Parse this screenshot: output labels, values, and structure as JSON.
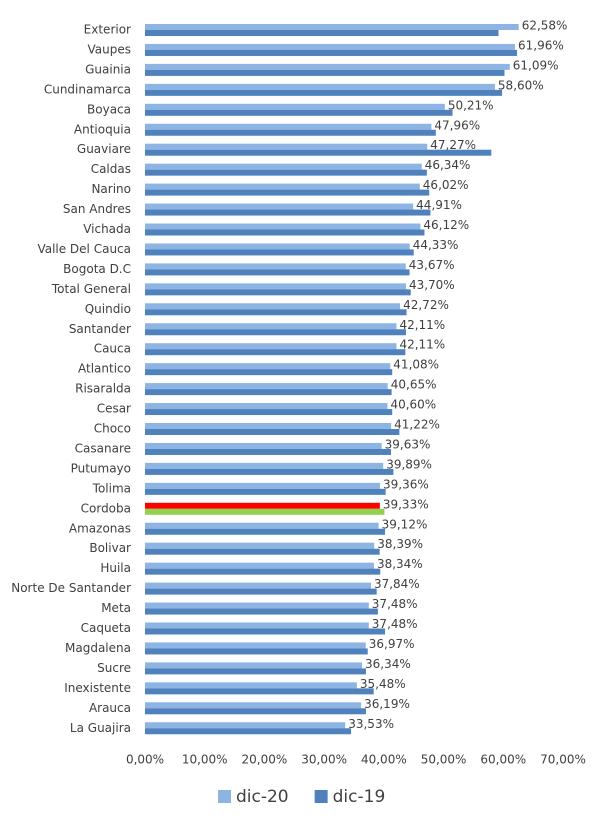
{
  "chart_data": {
    "type": "bar",
    "orientation": "horizontal",
    "categories": [
      "Exterior",
      "Vaupes",
      "Guainia",
      "Cundinamarca",
      "Boyaca",
      "Antioquia",
      "Guaviare",
      "Caldas",
      "Narino",
      "San Andres",
      "Vichada",
      "Valle Del Cauca",
      "Bogota D.C",
      "Total General",
      "Quindio",
      "Santander",
      "Cauca",
      "Atlantico",
      "Risaralda",
      "Cesar",
      "Choco",
      "Casanare",
      "Putumayo",
      "Tolima",
      "Cordoba",
      "Amazonas",
      "Bolivar",
      "Huila",
      "Norte De Santander",
      "Meta",
      "Caqueta",
      "Magdalena",
      "Sucre",
      "Inexistente",
      "Arauca",
      "La Guajira"
    ],
    "series": [
      {
        "name": "dic-20",
        "color": "#8eb4e3",
        "highlight_index": 24,
        "highlight_color": "#ff0000",
        "values": [
          62.58,
          61.96,
          61.09,
          58.6,
          50.21,
          47.96,
          47.27,
          46.34,
          46.02,
          44.91,
          46.12,
          44.33,
          43.67,
          43.7,
          42.72,
          42.11,
          42.11,
          41.08,
          40.65,
          40.6,
          41.22,
          39.63,
          39.89,
          39.36,
          39.33,
          39.12,
          38.39,
          38.34,
          37.84,
          37.48,
          37.48,
          36.97,
          36.34,
          35.48,
          36.19,
          33.53
        ],
        "value_labels": [
          "62,58%",
          "61,96%",
          "61,09%",
          "58,60%",
          "50,21%",
          "47,96%",
          "47,27%",
          "46,34%",
          "46,02%",
          "44,91%",
          "46,12%",
          "44,33%",
          "43,67%",
          "43,70%",
          "42,72%",
          "42,11%",
          "42,11%",
          "41,08%",
          "40,65%",
          "40,60%",
          "41,22%",
          "39,63%",
          "39,89%",
          "39,36%",
          "39,33%",
          "39,12%",
          "38,39%",
          "38,34%",
          "37,84%",
          "37,48%",
          "37,48%",
          "36,97%",
          "36,34%",
          "35,48%",
          "36,19%",
          "33,53%"
        ]
      },
      {
        "name": "dic-19",
        "color": "#4f81bd",
        "highlight_index": 24,
        "highlight_color": "#92d050",
        "values": [
          59.2,
          62.3,
          60.2,
          59.8,
          51.5,
          48.7,
          58.0,
          47.2,
          47.6,
          47.8,
          46.8,
          45.0,
          44.3,
          44.5,
          43.8,
          43.7,
          43.6,
          41.4,
          41.3,
          41.4,
          42.6,
          41.2,
          41.6,
          40.3,
          40.1,
          40.2,
          39.3,
          39.4,
          38.8,
          39.0,
          40.2,
          37.3,
          37.0,
          38.3,
          37.0,
          34.5
        ]
      }
    ],
    "xlim": [
      0,
      70
    ],
    "xticks": [
      {
        "value": 0,
        "label": "0,00%"
      },
      {
        "value": 10,
        "label": "10,00%"
      },
      {
        "value": 20,
        "label": "20,00%"
      },
      {
        "value": 30,
        "label": "30,00%"
      },
      {
        "value": 40,
        "label": "40,00%"
      },
      {
        "value": 50,
        "label": "50,00%"
      },
      {
        "value": 60,
        "label": "60,00%"
      },
      {
        "value": 70,
        "label": "70,00%"
      }
    ],
    "legend": "bottom"
  }
}
